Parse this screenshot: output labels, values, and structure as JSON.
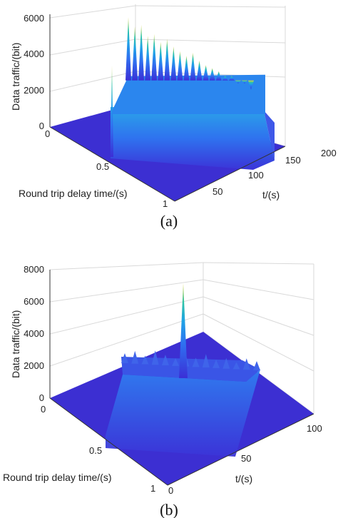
{
  "chart_data": [
    {
      "type": "surface",
      "panel_label": "(a)",
      "zlabel": "Data traffic/(bit)",
      "xlabel": "t/(s)",
      "ylabel": "Round trip delay time/(s)",
      "zlim": [
        0,
        6000
      ],
      "xlim": [
        0,
        200
      ],
      "ylim": [
        0,
        1
      ],
      "z_ticks": [
        "0",
        "2000",
        "4000",
        "6000"
      ],
      "x_ticks": [
        "50",
        "100",
        "150",
        "200"
      ],
      "y_ticks": [
        "0",
        "0.5",
        "1"
      ],
      "grid": true,
      "colormap": [
        "#3b2fd6",
        "#2f6ff0",
        "#1fa3e6",
        "#2ec4a6",
        "#e6d53a"
      ],
      "nonzero_delay_range": [
        0,
        0.1
      ],
      "nonzero_time_range": [
        0,
        100
      ],
      "peak_values": [
        5900,
        5400,
        5600,
        5000,
        5200,
        4800,
        5100,
        4700,
        4500,
        4300,
        4600,
        4200,
        4000,
        3900,
        3800,
        3600,
        3700,
        3300,
        3400,
        3100
      ],
      "base_level": 2400
    },
    {
      "type": "surface",
      "panel_label": "(b)",
      "zlabel": "Data traffic/(bit)",
      "xlabel": "t/(s)",
      "ylabel": "Round trip delay time/(s)",
      "zlim": [
        0,
        8000
      ],
      "xlim": [
        0,
        100
      ],
      "ylim": [
        0,
        1
      ],
      "z_ticks": [
        "0",
        "2000",
        "4000",
        "6000",
        "8000"
      ],
      "x_ticks": [
        "0",
        "50",
        "100"
      ],
      "y_ticks": [
        "0",
        "0.5",
        "1"
      ],
      "grid": true,
      "colormap": [
        "#3b2fd6",
        "#2f6ff0",
        "#1fa3e6",
        "#2ec4a6",
        "#e6d53a"
      ],
      "base_level": 2400,
      "spike": {
        "t": 35,
        "value": 7200
      }
    }
  ]
}
